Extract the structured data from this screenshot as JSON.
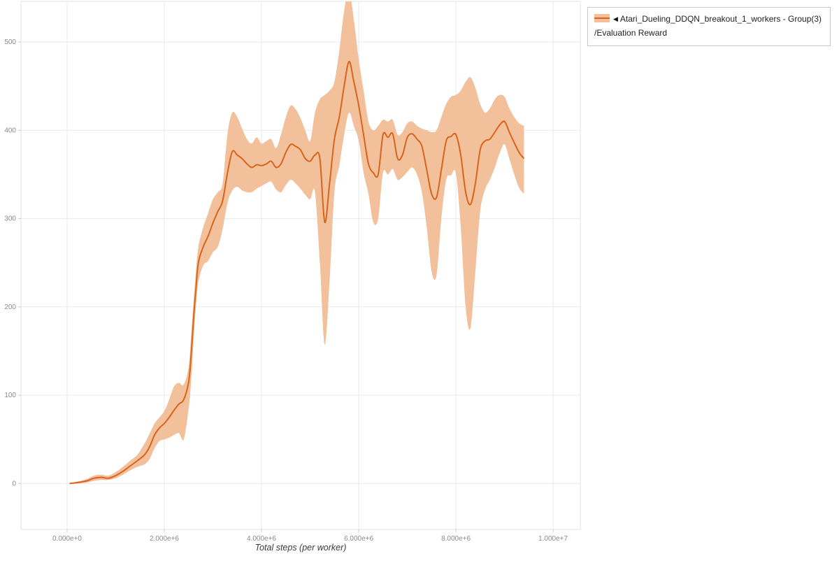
{
  "legend": {
    "collapse_icon": "◀",
    "series_name": "Atari_Dueling_DDQN_breakout_1_workers - Group(3)",
    "metric_name": "/Evaluation Reward"
  },
  "colors": {
    "line": "#d9641c",
    "band": "#f2c09a",
    "grid": "#e9e9e9",
    "plot_border": "#e3e3e3",
    "tick_text": "#8a8a8a",
    "legend_border": "#c9c9c9"
  },
  "chart_data": {
    "type": "line",
    "title": "",
    "xlabel": "Total steps (per worker)",
    "ylabel": "",
    "x_units": "millions of steps",
    "grid": true,
    "legend_position": "top-right-outside",
    "xlim": [
      -0.95,
      10.56
    ],
    "ylim": [
      -52,
      546
    ],
    "xticks": {
      "values": [
        0,
        2,
        4,
        6,
        8,
        10
      ],
      "labels": [
        "0.000e+0",
        "2.000e+6",
        "4.000e+6",
        "6.000e+6",
        "8.000e+6",
        "1.000e+7"
      ]
    },
    "yticks": {
      "values": [
        0,
        100,
        200,
        300,
        400,
        500
      ],
      "labels": [
        "0",
        "100",
        "200",
        "300",
        "400",
        "500"
      ]
    },
    "series": [
      {
        "name": "Atari_Dueling_DDQN_breakout_1_workers - Group(3)/Evaluation Reward",
        "x": [
          0.05,
          0.2,
          0.4,
          0.55,
          0.7,
          0.85,
          1.0,
          1.15,
          1.3,
          1.45,
          1.6,
          1.7,
          1.8,
          1.9,
          2.0,
          2.1,
          2.2,
          2.3,
          2.4,
          2.5,
          2.55,
          2.6,
          2.65,
          2.7,
          2.8,
          2.9,
          3.0,
          3.1,
          3.2,
          3.3,
          3.4,
          3.5,
          3.6,
          3.7,
          3.8,
          3.9,
          4.0,
          4.1,
          4.2,
          4.3,
          4.4,
          4.5,
          4.6,
          4.7,
          4.8,
          4.9,
          5.0,
          5.1,
          5.2,
          5.3,
          5.4,
          5.5,
          5.6,
          5.7,
          5.8,
          5.9,
          6.0,
          6.1,
          6.2,
          6.3,
          6.4,
          6.5,
          6.6,
          6.7,
          6.8,
          6.9,
          7.0,
          7.1,
          7.2,
          7.3,
          7.4,
          7.5,
          7.6,
          7.7,
          7.8,
          7.9,
          8.0,
          8.1,
          8.2,
          8.3,
          8.4,
          8.5,
          8.6,
          8.7,
          8.8,
          8.9,
          9.0,
          9.1,
          9.2,
          9.3,
          9.4
        ],
        "mean": [
          0,
          1,
          3,
          6,
          7,
          6,
          9,
          14,
          20,
          26,
          33,
          42,
          55,
          63,
          68,
          75,
          83,
          90,
          95,
          115,
          145,
          185,
          220,
          250,
          268,
          280,
          295,
          308,
          320,
          352,
          376,
          372,
          368,
          362,
          358,
          361,
          360,
          362,
          365,
          358,
          362,
          375,
          384,
          382,
          378,
          368,
          365,
          372,
          368,
          296,
          340,
          390,
          415,
          450,
          478,
          455,
          428,
          395,
          362,
          352,
          350,
          395,
          392,
          396,
          368,
          372,
          392,
          396,
          390,
          382,
          355,
          328,
          324,
          355,
          388,
          393,
          395,
          372,
          330,
          316,
          340,
          378,
          388,
          390,
          398,
          406,
          410,
          398,
          386,
          375,
          368
        ],
        "lower": [
          0,
          0,
          1,
          3,
          4,
          4,
          6,
          10,
          15,
          19,
          22,
          28,
          40,
          48,
          50,
          52,
          55,
          57,
          50,
          85,
          115,
          160,
          200,
          228,
          247,
          252,
          262,
          268,
          288,
          318,
          332,
          336,
          332,
          330,
          330,
          334,
          337,
          340,
          342,
          333,
          330,
          338,
          344,
          340,
          334,
          327,
          322,
          330,
          250,
          157,
          230,
          330,
          360,
          395,
          420,
          405,
          388,
          352,
          328,
          296,
          300,
          352,
          350,
          356,
          344,
          347,
          353,
          358,
          350,
          330,
          290,
          240,
          236,
          300,
          344,
          349,
          351,
          290,
          200,
          176,
          240,
          308,
          333,
          344,
          358,
          374,
          384,
          368,
          350,
          335,
          328
        ],
        "upper": [
          0,
          2,
          5,
          9,
          10,
          9,
          13,
          19,
          26,
          33,
          46,
          57,
          68,
          75,
          82,
          95,
          110,
          114,
          112,
          132,
          168,
          205,
          240,
          268,
          290,
          306,
          322,
          330,
          340,
          396,
          420,
          415,
          402,
          390,
          385,
          392,
          385,
          388,
          390,
          380,
          395,
          415,
          428,
          424,
          414,
          400,
          388,
          420,
          435,
          440,
          445,
          455,
          490,
          535,
          560,
          525,
          480,
          445,
          410,
          400,
          405,
          412,
          410,
          412,
          395,
          398,
          408,
          410,
          405,
          402,
          400,
          398,
          400,
          415,
          430,
          438,
          440,
          445,
          455,
          460,
          448,
          430,
          420,
          425,
          435,
          440,
          438,
          425,
          415,
          408,
          405
        ]
      }
    ]
  }
}
